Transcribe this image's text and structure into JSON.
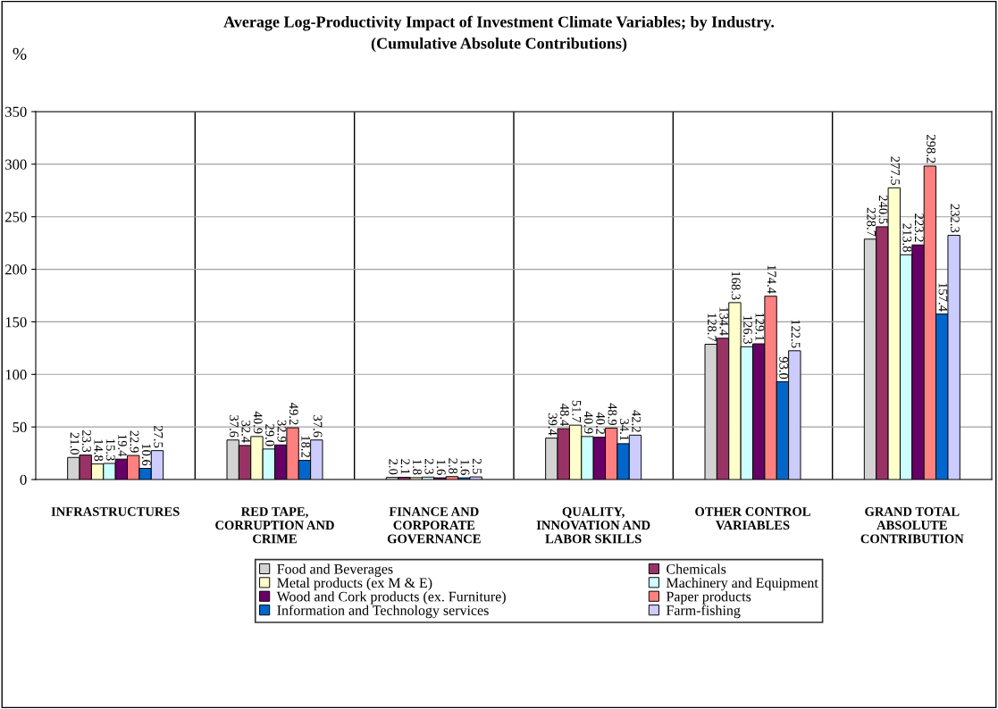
{
  "chart_data": {
    "type": "bar",
    "title": "Average Log-Productivity Impact of Investment Climate Variables; by Industry.\n(Cumulative Absolute Contributions)",
    "ylabel": "%",
    "categories": [
      "INFRASTRUCTURES",
      "RED TAPE, CORRUPTION AND CRIME",
      "FINANCE AND CORPORATE GOVERNANCE",
      "QUALITY, INNOVATION AND LABOR SKILLS",
      "OTHER CONTROL VARIABLES",
      "GRAND TOTAL ABSOLUTE CONTRIBUTION"
    ],
    "series": [
      {
        "name": "Food and Beverages",
        "color": "#d3d3d3",
        "values": [
          21.0,
          37.6,
          2.0,
          39.4,
          128.7,
          228.7
        ],
        "value_labels": [
          "21.0",
          "37.6",
          "2.0",
          "39.4",
          "128.7",
          "228.7"
        ]
      },
      {
        "name": "Chemicals",
        "color": "#993366",
        "values": [
          23.3,
          32.4,
          2.1,
          48.4,
          134.4,
          240.5
        ],
        "value_labels": [
          "23.3",
          "32.4",
          "2.1",
          "48.4",
          "134.4",
          "240.5"
        ]
      },
      {
        "name": "Metal products (ex M & E)",
        "color": "#ffffcc",
        "values": [
          14.8,
          40.9,
          1.8,
          51.7,
          168.3,
          277.5
        ],
        "value_labels": [
          "14.8",
          "40.9",
          "1.8",
          "51.7",
          "168.3",
          "277.5"
        ]
      },
      {
        "name": "Machinery and Equipment",
        "color": "#ccffff",
        "values": [
          15.3,
          29.0,
          2.3,
          40.9,
          126.3,
          213.8
        ],
        "value_labels": [
          "15.3",
          "29.0",
          "2.3",
          "40.9",
          "126.3",
          "213.8"
        ]
      },
      {
        "name": "Wood and Cork products (ex. Furniture)",
        "color": "#660066",
        "values": [
          19.4,
          32.9,
          1.6,
          40.2,
          129.1,
          223.2
        ],
        "value_labels": [
          "19.4",
          "32.9",
          "1.6",
          "40.2",
          "129.1",
          "223.2"
        ]
      },
      {
        "name": "Paper products",
        "color": "#ff8080",
        "values": [
          22.9,
          49.2,
          2.8,
          48.9,
          174.4,
          298.2
        ],
        "value_labels": [
          "22.9",
          "49.2",
          "2.8",
          "48.9",
          "174.4",
          "298.2"
        ]
      },
      {
        "name": "Information and Technology services",
        "color": "#0066cc",
        "values": [
          10.6,
          18.2,
          1.6,
          34.1,
          93.0,
          157.4
        ],
        "value_labels": [
          "10.6",
          "18.2",
          "1.6",
          "34.1",
          "93.0",
          "157.4"
        ]
      },
      {
        "name": "Farm-fishing",
        "color": "#ccccff",
        "values": [
          27.5,
          37.6,
          2.5,
          42.2,
          122.5,
          232.3
        ],
        "value_labels": [
          "27.5",
          "37.6",
          "2.5",
          "42.2",
          "122.5",
          "232.3"
        ]
      }
    ],
    "ylim": [
      0,
      350
    ],
    "yticks": [
      0,
      50,
      100,
      150,
      200,
      250,
      300,
      350
    ],
    "grid": true,
    "legend": "bottom"
  }
}
